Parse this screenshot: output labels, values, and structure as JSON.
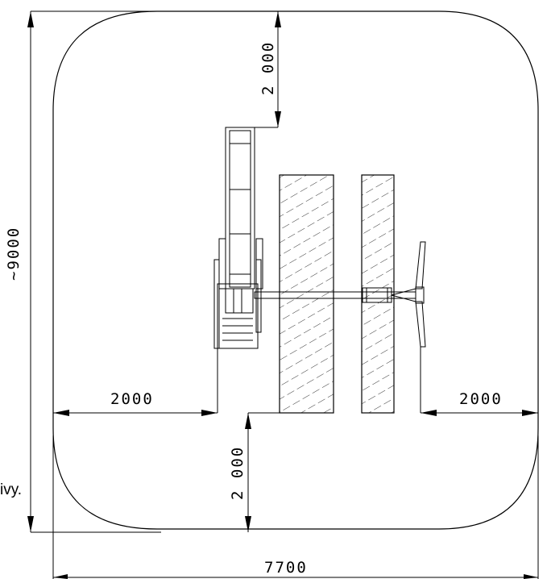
{
  "drawing": {
    "dimensions": {
      "top_clearance": "2 000",
      "bottom_clearance": "2 000",
      "left_clearance": "2000",
      "right_clearance": "2000",
      "overall_width": "7700",
      "overall_height": "~9000"
    },
    "clipped_text": "ivy."
  }
}
